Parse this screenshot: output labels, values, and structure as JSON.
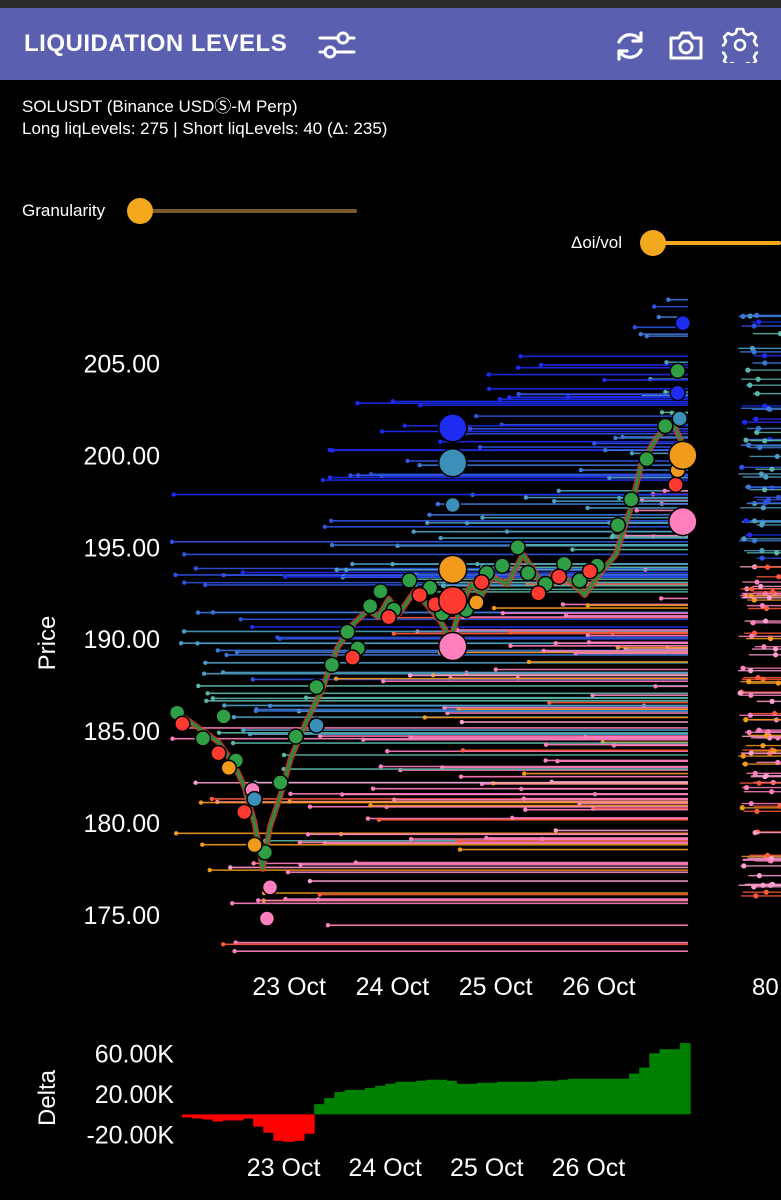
{
  "header": {
    "title": "LIQUIDATION LEVELS",
    "icons": [
      "filter-sliders-icon",
      "refresh-icon",
      "camera-icon",
      "gear-icon"
    ]
  },
  "info": {
    "symbol": "SOLUSDT (Binance USDⓈ-M Perp)",
    "levels": "Long liqLevels: 275 | Short liqLevels: 40 (Δ: 235)"
  },
  "controls": {
    "granularity_label": "Granularity",
    "oivol_label": "Δoi/vol",
    "accent": "#f4a81d"
  },
  "chart_data": [
    {
      "type": "scatter",
      "ylabel": "Price",
      "ylim": [
        172,
        209
      ],
      "y_ticks": [
        "205.00",
        "200.00",
        "195.00",
        "190.00",
        "185.00",
        "180.00",
        "175.00"
      ],
      "y_tick_values": [
        205,
        200,
        195,
        190,
        185,
        180,
        175
      ],
      "x_ticks": [
        "23 Oct",
        "24 Oct",
        "25 Oct",
        "26 Oct"
      ],
      "x_tick_values": [
        1,
        2,
        3,
        4
      ],
      "xlim": [
        0,
        5
      ],
      "side_axis_tick": "80",
      "price_path": [
        [
          0.05,
          186.0
        ],
        [
          0.25,
          185.2
        ],
        [
          0.45,
          184.4
        ],
        [
          0.6,
          183.2
        ],
        [
          0.7,
          182.0
        ],
        [
          0.8,
          180.0
        ],
        [
          0.88,
          177.5
        ],
        [
          0.95,
          179.8
        ],
        [
          1.05,
          181.5
        ],
        [
          1.15,
          183.5
        ],
        [
          1.3,
          185.5
        ],
        [
          1.45,
          187.2
        ],
        [
          1.6,
          189.5
        ],
        [
          1.75,
          190.8
        ],
        [
          1.9,
          191.6
        ],
        [
          2.0,
          191.2
        ],
        [
          2.1,
          192.2
        ],
        [
          2.2,
          191.4
        ],
        [
          2.35,
          192.6
        ],
        [
          2.45,
          192.0
        ],
        [
          2.6,
          191.0
        ],
        [
          2.7,
          190.0
        ],
        [
          2.8,
          191.8
        ],
        [
          2.9,
          193.0
        ],
        [
          3.0,
          192.4
        ],
        [
          3.1,
          193.4
        ],
        [
          3.25,
          193.0
        ],
        [
          3.4,
          194.6
        ],
        [
          3.5,
          193.8
        ],
        [
          3.6,
          192.8
        ],
        [
          3.7,
          193.6
        ],
        [
          3.85,
          193.2
        ],
        [
          4.0,
          192.4
        ],
        [
          4.15,
          193.6
        ],
        [
          4.3,
          194.6
        ],
        [
          4.45,
          197.2
        ],
        [
          4.55,
          199.6
        ],
        [
          4.7,
          201.0
        ],
        [
          4.85,
          201.8
        ],
        [
          5.0,
          200.0
        ]
      ],
      "series": [
        {
          "name": "",
          "color": "#2f9e45",
          "points": [
            [
              0.05,
              186.0
            ],
            [
              0.3,
              184.6
            ],
            [
              0.5,
              185.8
            ],
            [
              0.62,
              183.4
            ],
            [
              0.9,
              178.4
            ],
            [
              1.05,
              182.2
            ],
            [
              1.2,
              184.7
            ],
            [
              1.4,
              187.4
            ],
            [
              1.55,
              188.6
            ],
            [
              1.7,
              190.4
            ],
            [
              1.8,
              189.5
            ],
            [
              1.92,
              191.8
            ],
            [
              2.02,
              192.6
            ],
            [
              2.15,
              191.6
            ],
            [
              2.3,
              193.2
            ],
            [
              2.5,
              192.8
            ],
            [
              2.62,
              191.4
            ],
            [
              2.85,
              191.6
            ],
            [
              3.05,
              193.6
            ],
            [
              3.2,
              194.0
            ],
            [
              3.35,
              195.0
            ],
            [
              3.45,
              193.6
            ],
            [
              3.62,
              193.0
            ],
            [
              3.8,
              194.1
            ],
            [
              3.95,
              193.2
            ],
            [
              4.12,
              194.0
            ],
            [
              4.32,
              196.2
            ],
            [
              4.45,
              197.6
            ],
            [
              4.6,
              199.8
            ],
            [
              4.78,
              201.6
            ],
            [
              4.9,
              204.6
            ]
          ]
        },
        {
          "name": "",
          "color": "#ff3a30",
          "points": [
            [
              0.1,
              185.4
            ],
            [
              0.45,
              183.8
            ],
            [
              0.7,
              180.6
            ],
            [
              1.75,
              189.0
            ],
            [
              2.1,
              191.2
            ],
            [
              2.4,
              192.4
            ],
            [
              2.55,
              191.9
            ],
            [
              3.0,
              193.1
            ],
            [
              3.55,
              192.5
            ],
            [
              3.75,
              193.4
            ],
            [
              4.05,
              193.7
            ],
            [
              4.88,
              198.4
            ],
            [
              4.95,
              196.8
            ]
          ]
        },
        {
          "name": "",
          "color": "#f29a1c",
          "points": [
            [
              0.55,
              183.0
            ],
            [
              0.8,
              178.8
            ],
            [
              2.72,
              193.8
            ],
            [
              2.95,
              192.0
            ],
            [
              4.95,
              200.0
            ],
            [
              4.9,
              199.2
            ]
          ]
        },
        {
          "name": "",
          "color": "#ff7fbf",
          "points": [
            [
              0.78,
              181.8
            ],
            [
              0.92,
              174.8
            ],
            [
              0.95,
              176.5
            ],
            [
              2.7,
              189.6
            ],
            [
              4.95,
              196.4
            ]
          ]
        },
        {
          "name": "",
          "color": "#1d2cf0",
          "points": [
            [
              2.72,
              201.5
            ],
            [
              4.9,
              203.4
            ],
            [
              4.95,
              207.2
            ]
          ]
        },
        {
          "name": "",
          "color": "#3b8fb8",
          "points": [
            [
              0.8,
              181.3
            ],
            [
              2.72,
              199.6
            ],
            [
              2.72,
              197.3
            ],
            [
              1.4,
              185.3
            ],
            [
              4.92,
              202.0
            ]
          ]
        }
      ],
      "big_markers": [
        {
          "x": 2.72,
          "y": 201.5,
          "color": "#1d2cf0"
        },
        {
          "x": 2.72,
          "y": 199.6,
          "color": "#3b8fb8"
        },
        {
          "x": 2.72,
          "y": 193.8,
          "color": "#f29a1c"
        },
        {
          "x": 2.72,
          "y": 192.1,
          "color": "#ff3a30"
        },
        {
          "x": 2.72,
          "y": 189.6,
          "color": "#ff7fbf"
        },
        {
          "x": 4.95,
          "y": 200.0,
          "color": "#f29a1c"
        },
        {
          "x": 4.95,
          "y": 196.4,
          "color": "#ff7fbf"
        }
      ],
      "level_colors": {
        "short": [
          "#1d2cf0",
          "#2f52e0",
          "#3b78d8",
          "#4d9ec4",
          "#5ab6a8"
        ],
        "long": [
          "#ff7fbf",
          "#f29a1c",
          "#ff5a3a",
          "#ff9fd0"
        ]
      }
    },
    {
      "type": "bar",
      "ylabel": "Delta",
      "y_ticks": [
        "60.00K",
        "20.00K",
        "-20.00K"
      ],
      "y_tick_values": [
        60000,
        20000,
        -20000
      ],
      "ylim": [
        -35000,
        75000
      ],
      "x_ticks": [
        "23 Oct",
        "24 Oct",
        "25 Oct",
        "26 Oct"
      ],
      "x_tick_values": [
        1,
        2,
        3,
        4
      ],
      "xlim": [
        0,
        5
      ],
      "x": [
        0.05,
        0.15,
        0.25,
        0.35,
        0.45,
        0.55,
        0.65,
        0.75,
        0.85,
        0.95,
        1.05,
        1.15,
        1.25,
        1.35,
        1.45,
        1.55,
        1.65,
        1.75,
        1.85,
        1.95,
        2.05,
        2.15,
        2.25,
        2.35,
        2.45,
        2.55,
        2.65,
        2.75,
        2.85,
        2.95,
        3.05,
        3.15,
        3.25,
        3.35,
        3.45,
        3.55,
        3.65,
        3.75,
        3.85,
        3.95,
        4.05,
        4.15,
        4.25,
        4.35,
        4.45,
        4.55,
        4.65,
        4.75,
        4.85,
        4.95
      ],
      "values": [
        -3000,
        -4000,
        -5000,
        -7000,
        -6000,
        -6000,
        -4000,
        -12000,
        -18000,
        -26000,
        -27000,
        -26000,
        -19000,
        10000,
        16000,
        22000,
        24000,
        24000,
        26000,
        28000,
        30000,
        32000,
        32000,
        33000,
        34000,
        34000,
        33000,
        30000,
        30000,
        31000,
        31000,
        32000,
        32000,
        32000,
        32000,
        33000,
        33000,
        34000,
        35000,
        35000,
        35000,
        35000,
        35000,
        35000,
        40000,
        46000,
        60000,
        64000,
        64000,
        70000
      ],
      "pos_color": "#008000",
      "neg_color": "#ff0000"
    }
  ]
}
